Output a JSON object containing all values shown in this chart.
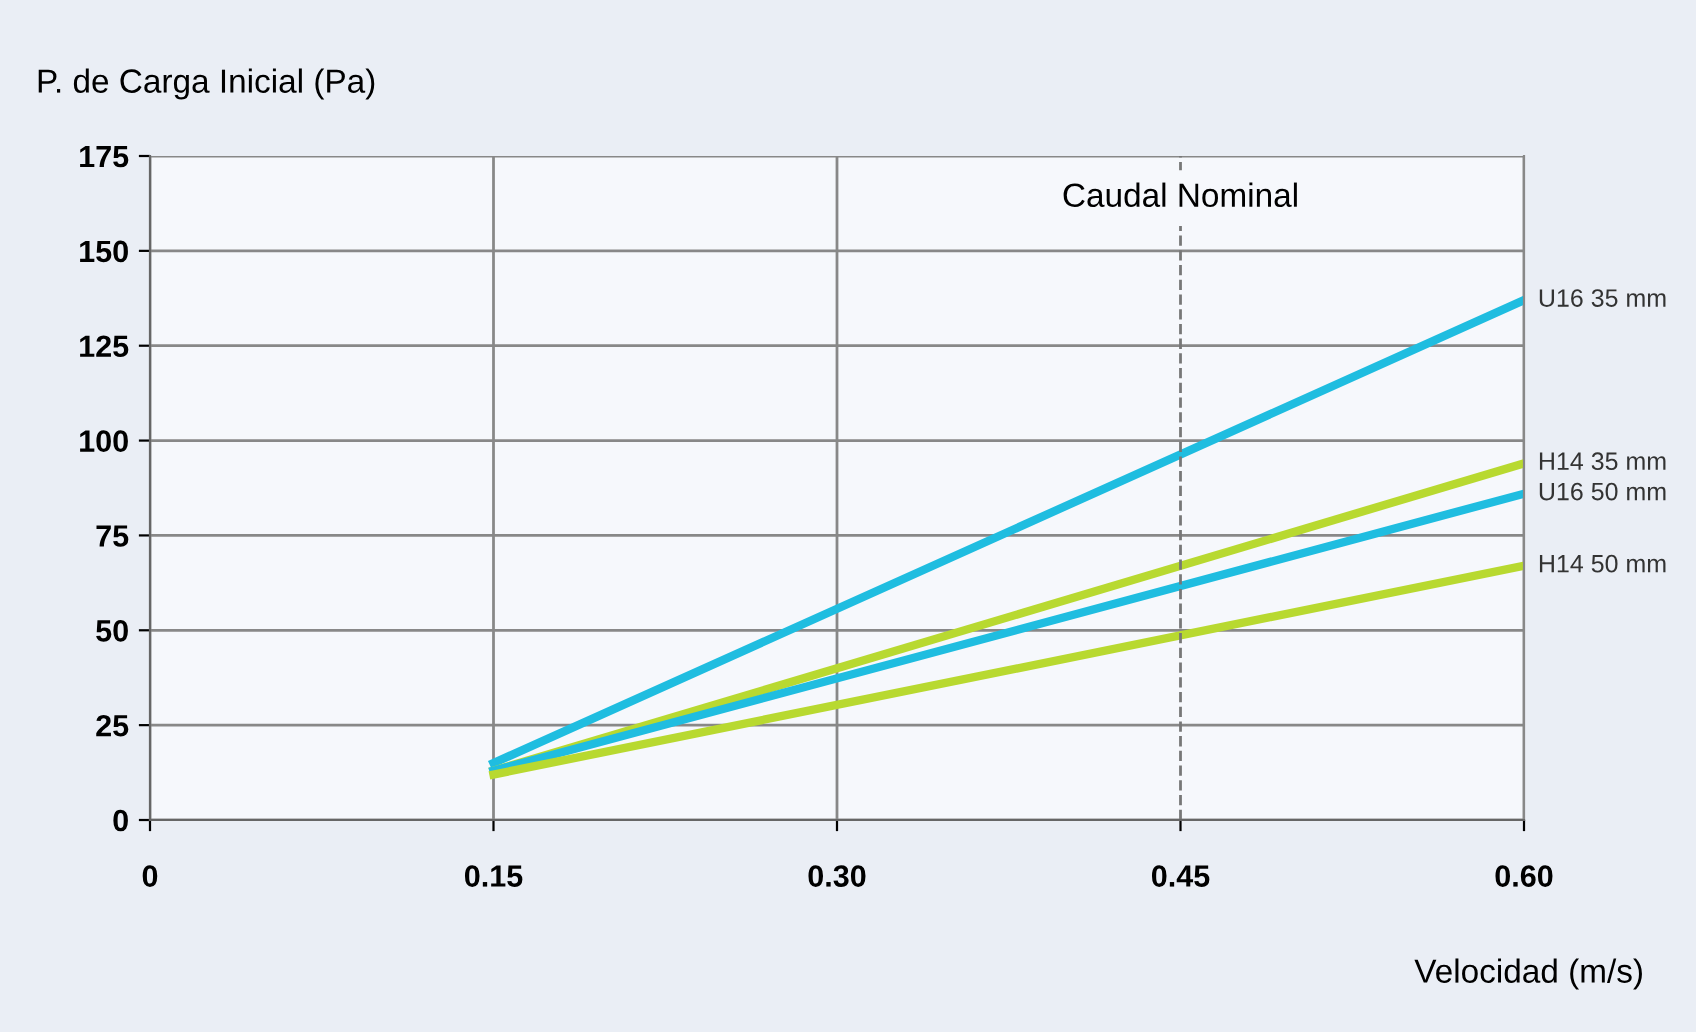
{
  "chart_data": {
    "type": "line",
    "xlabel": "Velocidad (m/s)",
    "ylabel": "P. de Carga Inicial (Pa)",
    "x": [
      0.15,
      0.6
    ],
    "series": [
      {
        "name": "U16 35 mm",
        "color": "#1fbde0",
        "values": [
          15,
          137
        ]
      },
      {
        "name": "H14 35 mm",
        "color": "#b8d930",
        "values": [
          13,
          94
        ]
      },
      {
        "name": "U16 50 mm",
        "color": "#1fbde0",
        "values": [
          13,
          86
        ]
      },
      {
        "name": "H14 50 mm",
        "color": "#b8d930",
        "values": [
          12,
          67
        ]
      }
    ],
    "xlim": [
      0,
      0.6
    ],
    "xticks": [
      0,
      0.15,
      {
        "value": 0.3,
        "label": "0.30"
      },
      0.45,
      {
        "value": 0.6,
        "label": "0.60"
      }
    ],
    "ylim": [
      0,
      175
    ],
    "yticks": [
      0,
      25,
      50,
      75,
      100,
      125,
      150,
      175
    ],
    "ref_lines": [
      {
        "axis": "x",
        "value": 0.45,
        "label": "Caudal Nominal",
        "color": "#777777",
        "line_style": "dashed"
      }
    ],
    "grid": true,
    "marker": "none",
    "line_style": "solid"
  }
}
